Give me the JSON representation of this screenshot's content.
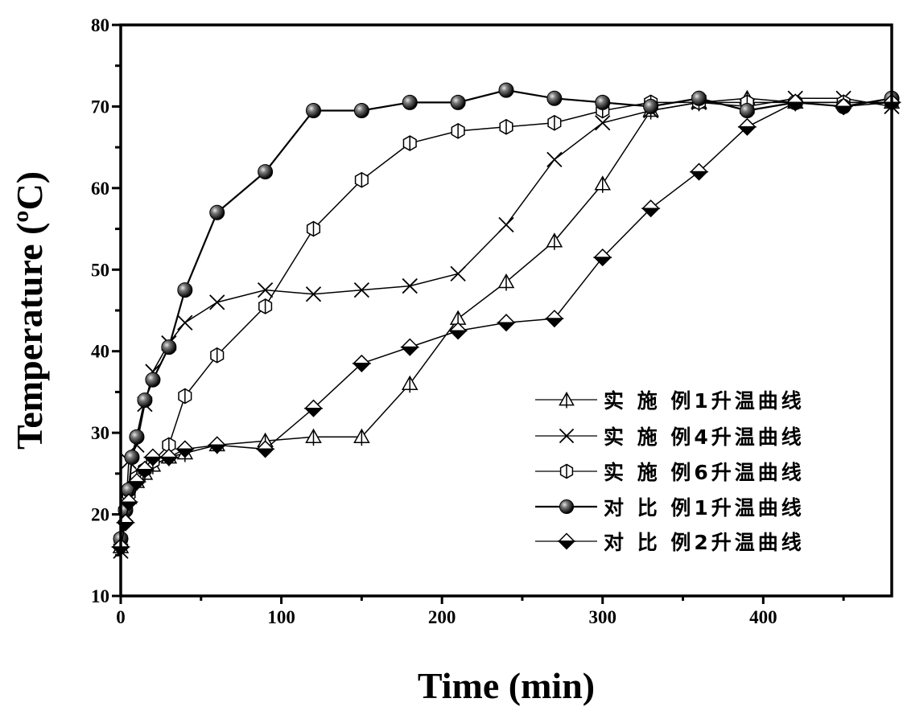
{
  "chart_data": {
    "type": "line",
    "title": "",
    "xlabel": "Time (min)",
    "ylabel": "Temperature (ºC)",
    "xlim": [
      0,
      480
    ],
    "ylim": [
      10,
      80
    ],
    "xticks": [
      0,
      100,
      200,
      300,
      400
    ],
    "yticks": [
      10,
      20,
      30,
      40,
      50,
      60,
      70,
      80
    ],
    "grid": false,
    "legend_position": "bottom-right",
    "series": [
      {
        "name": "实 施 例1升温曲线",
        "marker": "triangle",
        "x": [
          0,
          5,
          10,
          15,
          20,
          30,
          40,
          60,
          90,
          120,
          150,
          180,
          210,
          240,
          270,
          300,
          330,
          360,
          390,
          420,
          450,
          480
        ],
        "y": [
          16,
          22,
          24,
          25,
          26,
          27,
          27.5,
          28.5,
          29,
          29.5,
          29.5,
          36,
          44,
          48.5,
          53.5,
          60.5,
          69.5,
          70.5,
          71,
          70.5,
          70.5,
          70.5
        ]
      },
      {
        "name": "实 施 例4升温曲线",
        "marker": "x",
        "x": [
          0,
          3,
          5,
          10,
          15,
          20,
          30,
          40,
          60,
          90,
          120,
          150,
          180,
          210,
          240,
          270,
          300,
          330,
          360,
          390,
          420,
          450,
          480
        ],
        "y": [
          15.5,
          20,
          26.5,
          28.5,
          33.5,
          37.5,
          41,
          43.5,
          46,
          47.5,
          47,
          47.5,
          48,
          49.5,
          55.5,
          63.5,
          68,
          69.5,
          70.5,
          70,
          71,
          71,
          70
        ]
      },
      {
        "name": "实 施 例6升温曲线",
        "marker": "hexagon",
        "x": [
          0,
          5,
          10,
          15,
          20,
          30,
          40,
          60,
          90,
          120,
          150,
          180,
          210,
          240,
          270,
          300,
          330,
          360,
          390,
          420,
          450,
          480
        ],
        "y": [
          17,
          22.5,
          24.5,
          25.5,
          26.5,
          28.5,
          34.5,
          39.5,
          45.5,
          55,
          61,
          65.5,
          67,
          67.5,
          68,
          69.5,
          70.5,
          70.5,
          70.5,
          70.5,
          70.5,
          70.5
        ]
      },
      {
        "name": "对 比  例1升温曲线",
        "marker": "sphere",
        "x": [
          0,
          3,
          5,
          7,
          10,
          15,
          20,
          30,
          40,
          60,
          90,
          120,
          150,
          180,
          210,
          240,
          270,
          300,
          330,
          360,
          390,
          420,
          450,
          480
        ],
        "y": [
          17,
          20.5,
          23,
          27,
          29.5,
          34,
          36.5,
          40.5,
          47.5,
          57,
          62,
          69.5,
          69.5,
          70.5,
          70.5,
          72,
          71,
          70.5,
          70,
          71,
          69.5,
          70.5,
          70,
          71
        ]
      },
      {
        "name": "对 比  例2升温曲线",
        "marker": "diamond",
        "x": [
          0,
          3,
          5,
          10,
          15,
          20,
          30,
          40,
          60,
          90,
          120,
          150,
          180,
          210,
          240,
          270,
          300,
          330,
          360,
          390,
          420,
          450,
          480
        ],
        "y": [
          16,
          19,
          21.5,
          24,
          25.5,
          27,
          27,
          28,
          28.5,
          28,
          33,
          38.5,
          40.5,
          42.5,
          43.5,
          44,
          51.5,
          57.5,
          62,
          67.5,
          70.5,
          70,
          70.5
        ]
      }
    ]
  }
}
